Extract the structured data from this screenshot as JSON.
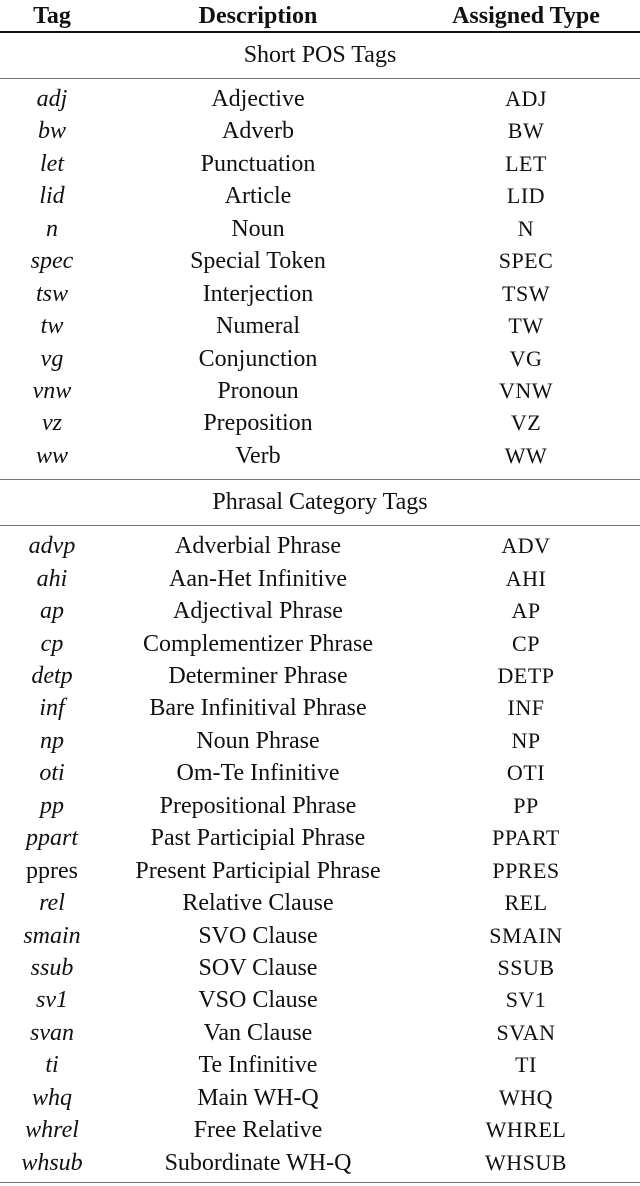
{
  "header": {
    "tag": "Tag",
    "description": "Description",
    "type": "Assigned Type"
  },
  "sections": [
    {
      "title": "Short POS Tags",
      "rows": [
        {
          "tag": "adj",
          "italic": true,
          "description": "Adjective",
          "type": "ADJ"
        },
        {
          "tag": "bw",
          "italic": true,
          "description": "Adverb",
          "type": "BW"
        },
        {
          "tag": "let",
          "italic": true,
          "description": "Punctuation",
          "type": "LET"
        },
        {
          "tag": "lid",
          "italic": true,
          "description": "Article",
          "type": "LID"
        },
        {
          "tag": "n",
          "italic": true,
          "description": "Noun",
          "type": "N"
        },
        {
          "tag": "spec",
          "italic": true,
          "description": "Special Token",
          "type": "SPEC"
        },
        {
          "tag": "tsw",
          "italic": true,
          "description": "Interjection",
          "type": "TSW"
        },
        {
          "tag": "tw",
          "italic": true,
          "description": "Numeral",
          "type": "TW"
        },
        {
          "tag": "vg",
          "italic": true,
          "description": "Conjunction",
          "type": "VG"
        },
        {
          "tag": "vnw",
          "italic": true,
          "description": "Pronoun",
          "type": "VNW"
        },
        {
          "tag": "vz",
          "italic": true,
          "description": "Preposition",
          "type": "VZ"
        },
        {
          "tag": "ww",
          "italic": true,
          "description": "Verb",
          "type": "WW"
        }
      ]
    },
    {
      "title": "Phrasal Category Tags",
      "rows": [
        {
          "tag": "advp",
          "italic": true,
          "description": "Adverbial Phrase",
          "type": "ADV"
        },
        {
          "tag": "ahi",
          "italic": true,
          "description": "Aan-Het Infinitive",
          "type": "AHI"
        },
        {
          "tag": "ap",
          "italic": true,
          "description": "Adjectival Phrase",
          "type": "AP"
        },
        {
          "tag": "cp",
          "italic": true,
          "description": "Complementizer Phrase",
          "type": "CP"
        },
        {
          "tag": "detp",
          "italic": true,
          "description": "Determiner Phrase",
          "type": "DETP"
        },
        {
          "tag": "inf",
          "italic": true,
          "description": "Bare Infinitival Phrase",
          "type": "INF"
        },
        {
          "tag": "np",
          "italic": true,
          "description": "Noun Phrase",
          "type": "NP"
        },
        {
          "tag": "oti",
          "italic": true,
          "description": "Om-Te Infinitive",
          "type": "OTI"
        },
        {
          "tag": "pp",
          "italic": true,
          "description": "Prepositional Phrase",
          "type": "PP"
        },
        {
          "tag": "ppart",
          "italic": true,
          "description": "Past Participial Phrase",
          "type": "PPART"
        },
        {
          "tag": "ppres",
          "italic": false,
          "description": "Present Participial Phrase",
          "type": "PPRES"
        },
        {
          "tag": "rel",
          "italic": true,
          "description": "Relative Clause",
          "type": "REL"
        },
        {
          "tag": "smain",
          "italic": true,
          "description": "SVO Clause",
          "type": "SMAIN"
        },
        {
          "tag": "ssub",
          "italic": true,
          "description": "SOV Clause",
          "type": "SSUB"
        },
        {
          "tag": "sv1",
          "italic": true,
          "description": "VSO Clause",
          "type": "SV1"
        },
        {
          "tag": "svan",
          "italic": true,
          "description": "Van Clause",
          "type": "SVAN"
        },
        {
          "tag": "ti",
          "italic": true,
          "description": "Te Infinitive",
          "type": "TI"
        },
        {
          "tag": "whq",
          "italic": true,
          "description": "Main WH-Q",
          "type": "WHQ"
        },
        {
          "tag": "whrel",
          "italic": true,
          "description": "Free Relative",
          "type": "WHREL"
        },
        {
          "tag": "whsub",
          "italic": true,
          "description": "Subordinate WH-Q",
          "type": "WHSUB"
        }
      ]
    }
  ]
}
